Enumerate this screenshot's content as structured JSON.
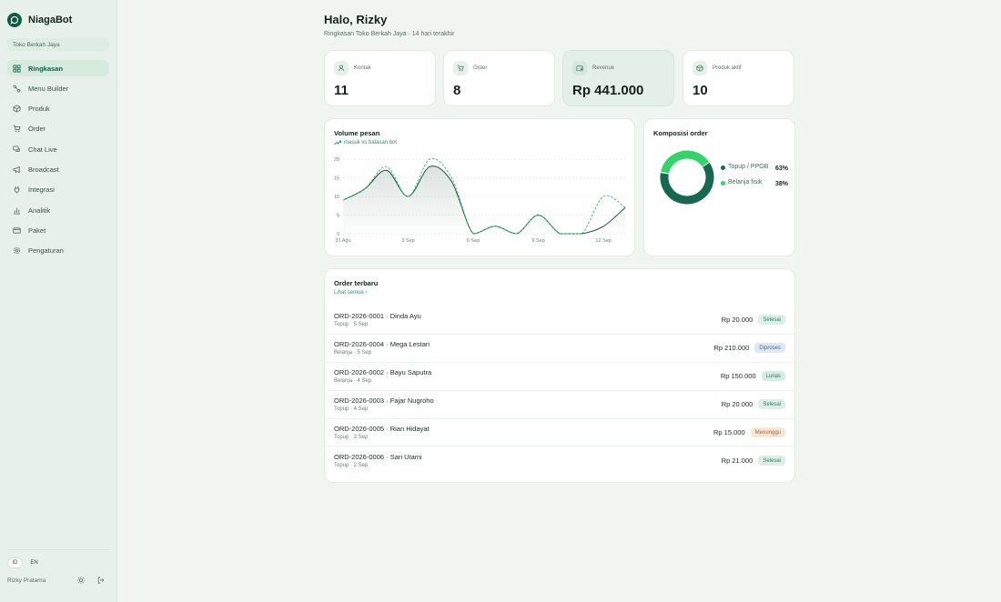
{
  "brand": {
    "name": "NiagaBot"
  },
  "store": {
    "name": "Toko Berkah Jaya"
  },
  "sidebar": {
    "items": [
      {
        "label": "Ringkasan",
        "icon": "grid-icon",
        "active": true
      },
      {
        "label": "Menu Builder",
        "icon": "workflow-icon",
        "active": false
      },
      {
        "label": "Produk",
        "icon": "box-icon",
        "active": false
      },
      {
        "label": "Order",
        "icon": "cart-icon",
        "active": false
      },
      {
        "label": "Chat Live",
        "icon": "chat-icon",
        "active": false
      },
      {
        "label": "Broadcast",
        "icon": "megaphone-icon",
        "active": false
      },
      {
        "label": "Integrasi",
        "icon": "plug-icon",
        "active": false
      },
      {
        "label": "Analitik",
        "icon": "bar-chart-icon",
        "active": false
      },
      {
        "label": "Paket",
        "icon": "card-icon",
        "active": false
      },
      {
        "label": "Pengaturan",
        "icon": "gear-icon",
        "active": false
      }
    ],
    "languages": [
      "ID",
      "EN"
    ],
    "active_language": "ID",
    "user_name": "Rizky Pratama"
  },
  "header": {
    "title": "Halo, Rizky",
    "subtitle": "Ringkasan Toko Berkah Jaya · 14 hari terakhir"
  },
  "stats": [
    {
      "label": "Kontak",
      "value": "11",
      "icon": "user-icon"
    },
    {
      "label": "Order",
      "value": "8",
      "icon": "cart-icon"
    },
    {
      "label": "Revenue",
      "value": "Rp 441.000",
      "icon": "wallet-icon"
    },
    {
      "label": "Produk aktif",
      "value": "10",
      "icon": "box-icon"
    }
  ],
  "volume": {
    "title": "Volume pesan",
    "subtitle": "masuk vs balasan bot"
  },
  "composition": {
    "title": "Komposisi order"
  },
  "chart_data": [
    {
      "type": "area",
      "title": "Volume pesan",
      "subtitle": "masuk vs balasan bot",
      "x": [
        "31 Agu",
        "1 Sep",
        "2 Sep",
        "3 Sep",
        "4 Sep",
        "5 Sep",
        "6 Sep",
        "7 Sep",
        "8 Sep",
        "9 Sep",
        "10 Sep",
        "11 Sep",
        "12 Sep",
        "13 Sep"
      ],
      "x_tick_labels": [
        "31 Agu",
        "3 Sep",
        "6 Sep",
        "9 Sep",
        "12 Sep"
      ],
      "y_ticks": [
        "0",
        "5",
        "10",
        "15",
        "20"
      ],
      "ylim": [
        0,
        20
      ],
      "grid": true,
      "series": [
        {
          "style": "solid-area",
          "color": "#1f4d3f",
          "values": [
            9,
            12,
            17,
            10,
            18,
            14,
            0,
            2,
            0,
            5,
            0,
            0,
            2,
            7
          ]
        },
        {
          "style": "dashed",
          "color": "#34c26a",
          "values": [
            9,
            12,
            18,
            10,
            20,
            15,
            0,
            2,
            0,
            5,
            0,
            0,
            10,
            7
          ]
        }
      ]
    },
    {
      "type": "pie",
      "title": "Komposisi order",
      "donut": true,
      "labels": [
        "Topup / PPOB",
        "Belanja fisik"
      ],
      "percent_labels": [
        "63%",
        "38%"
      ],
      "values": [
        62.5,
        37.5
      ],
      "colors": [
        "#15694f",
        "#34d46a"
      ]
    }
  ],
  "orders": {
    "title": "Order terbaru",
    "see_all": "Lihat semua ›",
    "rows": [
      {
        "title": "ORD-2026-0001 · Dinda Ayu",
        "meta": "Topup · 5 Sep",
        "amount": "Rp 20.000",
        "status": "Selesai",
        "status_bg": "#dbefe6",
        "status_fg": "#2f7f64"
      },
      {
        "title": "ORD-2026-0004 · Mega Lestari",
        "meta": "Belanja · 5 Sep",
        "amount": "Rp 210.000",
        "status": "Diproses",
        "status_bg": "#dce8f3",
        "status_fg": "#3f6f9a"
      },
      {
        "title": "ORD-2026-0002 · Bayu Saputra",
        "meta": "Belanja · 4 Sep",
        "amount": "Rp 150.000",
        "status": "Lunas",
        "status_bg": "#d6ede4",
        "status_fg": "#2a7a5e"
      },
      {
        "title": "ORD-2026-0003 · Fajar Nugroho",
        "meta": "Topup · 4 Sep",
        "amount": "Rp 20.000",
        "status": "Selesai",
        "status_bg": "#dbefe6",
        "status_fg": "#2f7f64"
      },
      {
        "title": "ORD-2026-0005 · Rian Hidayat",
        "meta": "Topup · 3 Sep",
        "amount": "Rp 15.000",
        "status": "Menunggu",
        "status_bg": "#f6e6d6",
        "status_fg": "#a8683a"
      },
      {
        "title": "ORD-2026-0006 · Sari Utami",
        "meta": "Topup · 2 Sep",
        "amount": "Rp 21.000",
        "status": "Selesai",
        "status_bg": "#dbefe6",
        "status_fg": "#2f7f64"
      }
    ]
  },
  "colors": {
    "accent": "#0f5d48",
    "accent_light": "#34d46a",
    "sidebar_bg": "#e7f0ea",
    "page_bg": "#f1f5f2"
  }
}
